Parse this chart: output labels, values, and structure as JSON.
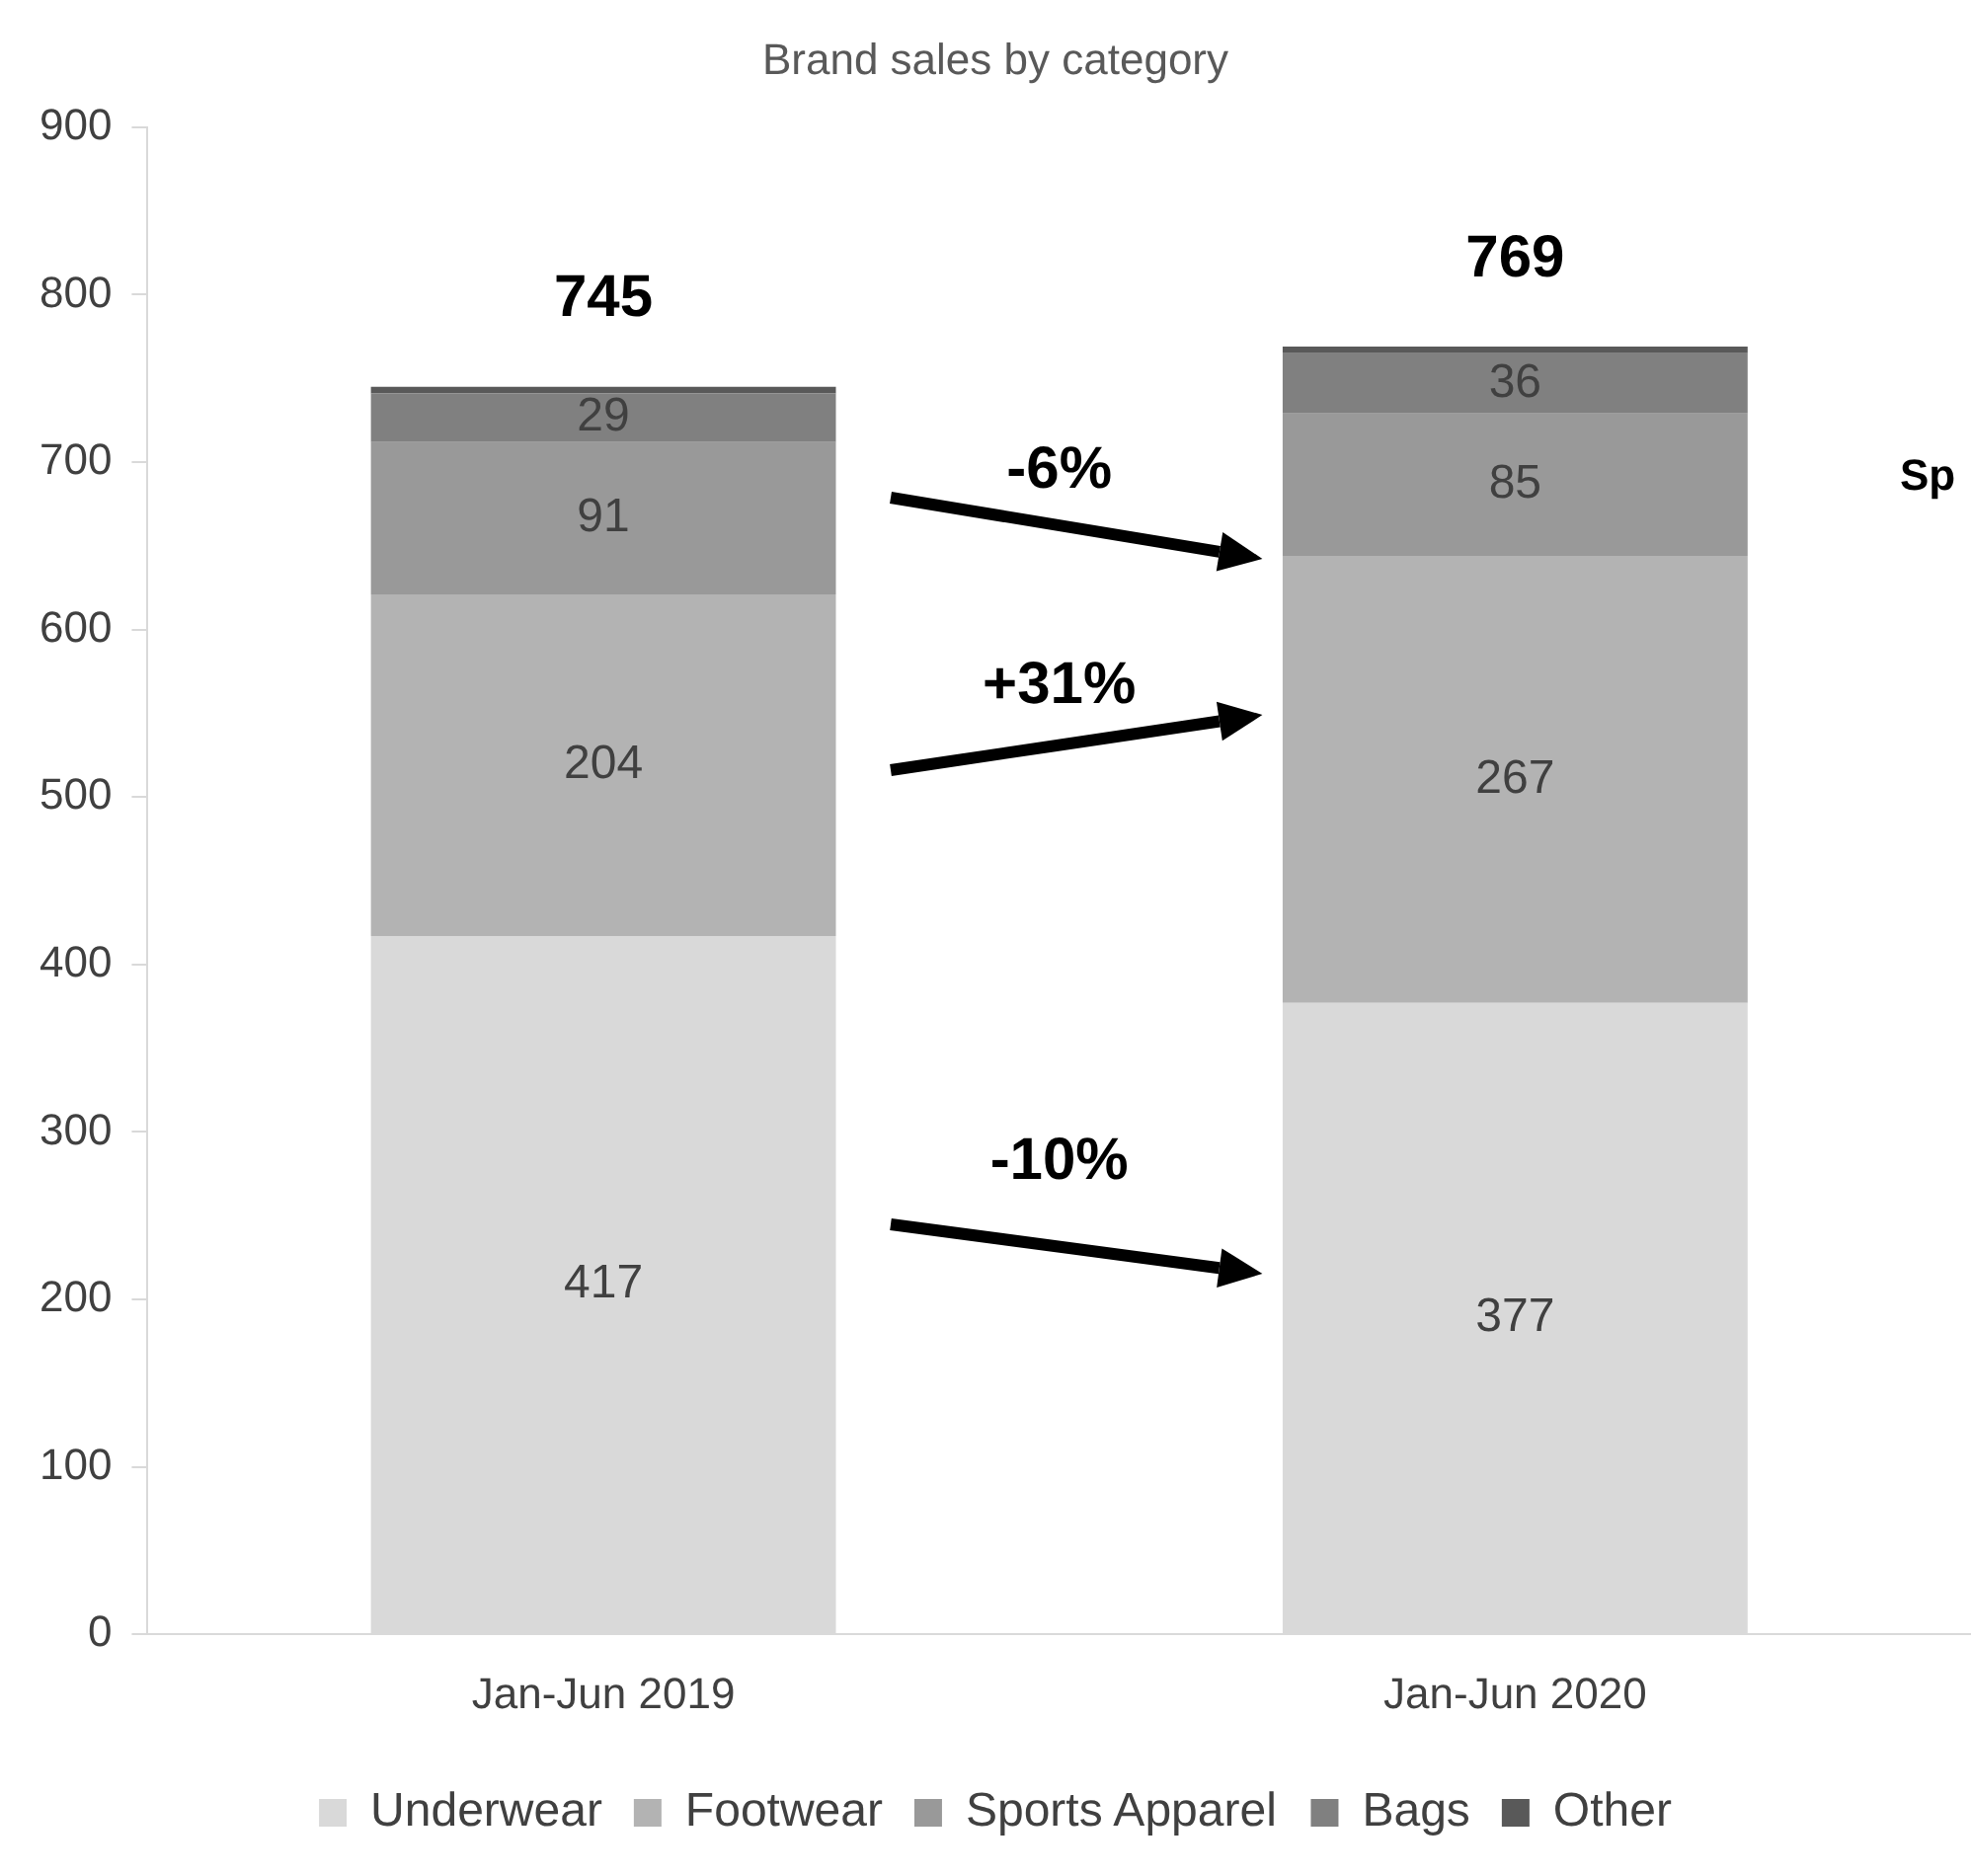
{
  "chart_data": {
    "type": "bar",
    "title": "Brand sales by category",
    "stacked": true,
    "categories": [
      "Jan-Jun 2019",
      "Jan-Jun 2020"
    ],
    "series": [
      {
        "name": "Underwear",
        "color": "#d9d9d9",
        "values": [
          417,
          377
        ],
        "value_labels": [
          "417",
          "377"
        ]
      },
      {
        "name": "Footwear",
        "color": "#b3b3b3",
        "values": [
          204,
          267
        ],
        "value_labels": [
          "204",
          "267"
        ]
      },
      {
        "name": "Sports Apparel",
        "color": "#999999",
        "values": [
          91,
          85
        ],
        "value_labels": [
          "91",
          "85"
        ]
      },
      {
        "name": "Bags",
        "color": "#808080",
        "values": [
          29,
          36
        ],
        "value_labels": [
          "29",
          "36"
        ]
      },
      {
        "name": "Other",
        "color": "#595959",
        "values": [
          4,
          4
        ],
        "value_labels": [
          null,
          null
        ]
      }
    ],
    "totals": [
      "745",
      "769"
    ],
    "ylim": [
      0,
      900
    ],
    "yticks": [
      0,
      100,
      200,
      300,
      400,
      500,
      600,
      700,
      800,
      900
    ],
    "grid": false,
    "legend": "bottom",
    "annotations": [
      "-6%",
      "+31%",
      "-10%",
      "Sp"
    ]
  }
}
